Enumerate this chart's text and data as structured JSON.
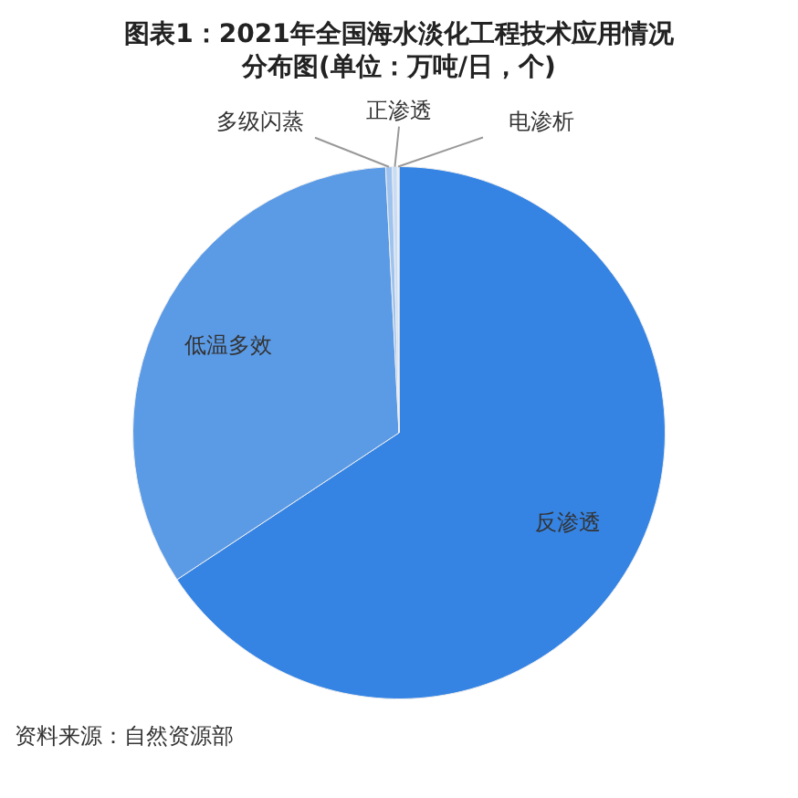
{
  "chart_data": {
    "type": "pie",
    "title": "图表1：2021年全国海水淡化工程技术应用情况分布图(单位：万吨/日，个)",
    "categories": [
      "反渗透",
      "低温多效",
      "多级闪蒸",
      "正渗透",
      "电渗析"
    ],
    "values": [
      65.7,
      33.5,
      0.4,
      0.3,
      0.1
    ],
    "colors": [
      "#3584e4",
      "#5b9be6",
      "#9fc3ef",
      "#c9dcf5",
      "#e3edf9"
    ],
    "legend": false,
    "annotations": [
      "资料来源：自然资源部"
    ]
  }
}
